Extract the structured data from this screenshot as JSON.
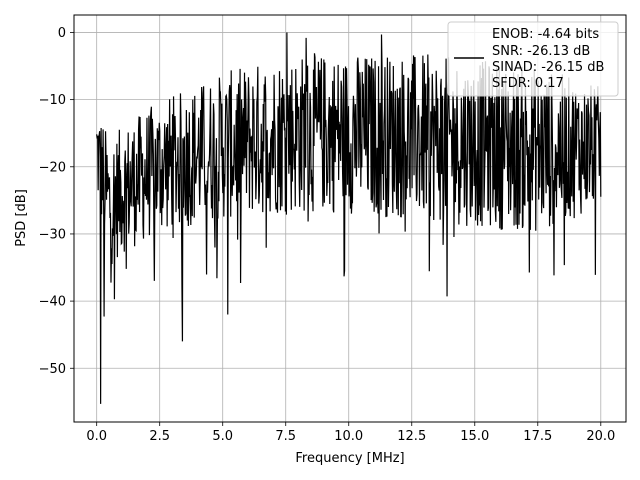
{
  "chart_data": {
    "type": "line",
    "title": "",
    "xlabel": "Frequency [MHz]",
    "ylabel": "PSD [dB]",
    "xlim": [
      -0.9,
      21.0
    ],
    "ylim": [
      -58,
      2.6
    ],
    "xticks": [
      0.0,
      2.5,
      5.0,
      7.5,
      10.0,
      12.5,
      15.0,
      17.5,
      20.0
    ],
    "xtick_labels": [
      "0.0",
      "2.5",
      "5.0",
      "7.5",
      "10.0",
      "12.5",
      "15.0",
      "17.5",
      "20.0"
    ],
    "yticks": [
      0,
      -10,
      -20,
      -30,
      -40,
      -50
    ],
    "ytick_labels": [
      "0",
      "−10",
      "−20",
      "−30",
      "−40",
      "−50"
    ],
    "grid": true,
    "legend_position": "top-right",
    "line_color": "#000000",
    "legend": {
      "lines": [
        "ENOB: -4.64 bits",
        "SNR: -26.13 dB",
        "SINAD: -26.15 dB",
        "SFDR: 0.17"
      ]
    },
    "series": [
      {
        "x_start": 0.0,
        "x_end": 20.0,
        "points": 1024,
        "envelope_approx": {
          "x": [
            0.0,
            0.5,
            1.0,
            2.5,
            5.0,
            7.5,
            10.0,
            12.5,
            15.0,
            17.5,
            20.0
          ],
          "upper": [
            -10,
            -16,
            -14,
            -10,
            -6,
            -3,
            -3,
            -3,
            -4,
            -5,
            -8
          ],
          "lower": [
            -25,
            -35,
            -33,
            -30,
            -28,
            -27,
            -27,
            -28,
            -29,
            -30,
            -26
          ]
        },
        "notable_minima": [
          {
            "x": 0.15,
            "y": -55.3
          },
          {
            "x": 0.3,
            "y": -42.3
          },
          {
            "x": 3.4,
            "y": -46.0
          },
          {
            "x": 5.2,
            "y": -42.0
          },
          {
            "x": 13.9,
            "y": -39.3
          }
        ],
        "notable_maxima": [
          {
            "x": 7.55,
            "y": 0.0
          },
          {
            "x": 11.3,
            "y": -0.3
          },
          {
            "x": 8.3,
            "y": -0.8
          }
        ]
      }
    ]
  }
}
